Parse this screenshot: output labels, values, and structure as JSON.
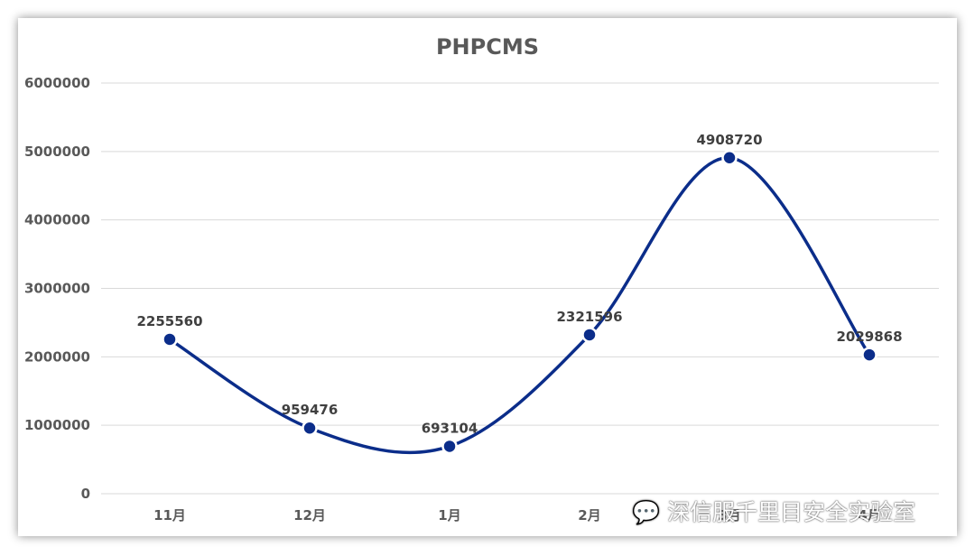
{
  "watermark": {
    "text": "深信服千里目安全实验室"
  },
  "chart_data": {
    "type": "line",
    "title": "PHPCMS",
    "xlabel": "",
    "ylabel": "",
    "categories": [
      "11月",
      "12月",
      "1月",
      "2月",
      "3月",
      "4月"
    ],
    "series": [
      {
        "color": "#0b2d8a",
        "values": [
          2255560,
          959476,
          693104,
          2321596,
          4908720,
          2029868
        ],
        "labels": [
          "2255560",
          "959476",
          "693104",
          "2321596",
          "4908720",
          "2029868"
        ]
      }
    ],
    "ylim": [
      0,
      6000000
    ],
    "yticks": [
      "0",
      "1000000",
      "2000000",
      "3000000",
      "4000000",
      "5000000",
      "6000000"
    ],
    "smooth": true,
    "grid": true,
    "legend": "none"
  }
}
